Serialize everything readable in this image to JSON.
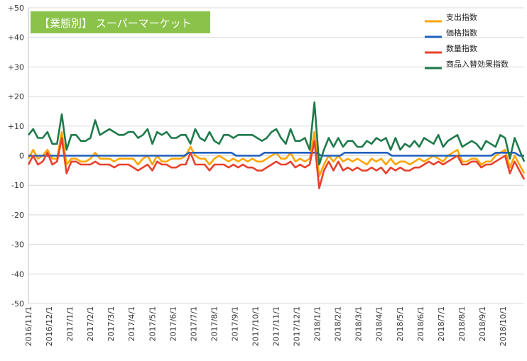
{
  "chart_data": {
    "type": "line",
    "title": "【業態別】 スーパーマーケット",
    "ylim": [
      -50,
      50
    ],
    "yticks": [
      50,
      40,
      30,
      20,
      10,
      0,
      -10,
      -20,
      -30,
      -40,
      -50
    ],
    "ytick_labels": [
      "+50",
      "+40",
      "+30",
      "+20",
      "+10",
      "0",
      "-10",
      "-20",
      "-30",
      "-40",
      "-50"
    ],
    "grid": true,
    "legend_position": "top-right",
    "x_start": "2016/11/1",
    "x_interval": "weekly",
    "x_labels": [
      "2016/11/1",
      "2016/12/1",
      "2017/1/1",
      "2017/2/1",
      "2017/3/1",
      "2017/4/1",
      "2017/5/1",
      "2017/6/1",
      "2017/7/1",
      "2017/8/1",
      "2017/9/1",
      "2017/10/1",
      "2017/11/1",
      "2017/12/1",
      "2018/1/1",
      "2018/2/1",
      "2018/3/1",
      "2018/4/1",
      "2018/5/1",
      "2018/6/1",
      "2018/7/1",
      "2018/8/1",
      "2018/9/1",
      "2018/10/1"
    ],
    "series": [
      {
        "name": "支出指数",
        "color": "#FFA500",
        "values": [
          -1,
          2,
          -1,
          0,
          2,
          -1,
          -1,
          8,
          -3,
          -1,
          -1,
          -2,
          -2,
          -1,
          1,
          -1,
          -1,
          -1,
          -2,
          -1,
          -1,
          -1,
          -1,
          -3,
          -1,
          0,
          -3,
          0,
          -2,
          -2,
          -1,
          -1,
          -1,
          0,
          3,
          0,
          -1,
          -1,
          -3,
          -1,
          0,
          -1,
          -2,
          -1,
          -2,
          -1,
          -2,
          -1,
          -2,
          -2,
          -1,
          0,
          1,
          -1,
          -1,
          1,
          -2,
          -1,
          -2,
          -1,
          8,
          -7,
          -3,
          0,
          -2,
          0,
          -2,
          -1,
          -2,
          -1,
          -2,
          -3,
          -1,
          -2,
          -1,
          -3,
          -1,
          -3,
          -2,
          -2,
          -3,
          -2,
          -1,
          -2,
          -1,
          0,
          -1,
          -2,
          0,
          1,
          2,
          -2,
          -2,
          -1,
          -1,
          -3,
          -2,
          -2,
          0,
          1,
          2,
          -4,
          0,
          -3,
          -6
        ]
      },
      {
        "name": "価格指数",
        "color": "#1F5FBF",
        "values": [
          0,
          0,
          0,
          0,
          0,
          0,
          0,
          0,
          0,
          0,
          0,
          0,
          0,
          0,
          0,
          0,
          0,
          0,
          0,
          0,
          0,
          0,
          0,
          0,
          0,
          0,
          0,
          0,
          0,
          0,
          0,
          0,
          0,
          0,
          1,
          1,
          1,
          1,
          1,
          1,
          1,
          1,
          1,
          1,
          0,
          0,
          0,
          0,
          0,
          0,
          1,
          1,
          1,
          1,
          1,
          1,
          1,
          1,
          1,
          1,
          1,
          1,
          0,
          0,
          0,
          0,
          0,
          1,
          1,
          1,
          1,
          1,
          1,
          1,
          1,
          1,
          1,
          0,
          0,
          0,
          0,
          0,
          0,
          0,
          0,
          0,
          0,
          0,
          0,
          0,
          0,
          0,
          0,
          0,
          0,
          0,
          0,
          0,
          0,
          1,
          1,
          1,
          1,
          1,
          0,
          0
        ]
      },
      {
        "name": "数量指数",
        "color": "#E8412C",
        "values": [
          -3,
          0,
          -3,
          -2,
          1,
          -3,
          -2,
          6,
          -6,
          -2,
          -2,
          -3,
          -3,
          -3,
          -2,
          -3,
          -3,
          -3,
          -4,
          -3,
          -3,
          -3,
          -4,
          -5,
          -4,
          -3,
          -5,
          -2,
          -3,
          -3,
          -4,
          -4,
          -3,
          -3,
          1,
          -3,
          -3,
          -3,
          -5,
          -3,
          -3,
          -3,
          -4,
          -3,
          -4,
          -3,
          -4,
          -4,
          -5,
          -5,
          -4,
          -3,
          -2,
          -3,
          -3,
          -2,
          -4,
          -3,
          -4,
          -3,
          5,
          -11,
          -5,
          -2,
          -5,
          -2,
          -5,
          -4,
          -5,
          -4,
          -5,
          -5,
          -4,
          -5,
          -4,
          -6,
          -4,
          -5,
          -4,
          -5,
          -5,
          -4,
          -4,
          -3,
          -2,
          -3,
          -2,
          -3,
          -2,
          -1,
          0,
          -3,
          -3,
          -2,
          -2,
          -4,
          -3,
          -3,
          -2,
          -1,
          0,
          -6,
          -2,
          -5,
          -8
        ]
      },
      {
        "name": "商品入替効果指数",
        "color": "#1E7A4A",
        "values": [
          7,
          9,
          6,
          6,
          8,
          4,
          4,
          14,
          2,
          7,
          7,
          5,
          5,
          6,
          12,
          7,
          8,
          9,
          8,
          7,
          7,
          8,
          8,
          6,
          7,
          9,
          4,
          8,
          7,
          8,
          6,
          6,
          7,
          7,
          4,
          9,
          6,
          5,
          8,
          5,
          4,
          7,
          7,
          6,
          7,
          7,
          7,
          7,
          6,
          5,
          6,
          8,
          9,
          6,
          4,
          9,
          5,
          5,
          6,
          2,
          18,
          -3,
          2,
          6,
          3,
          6,
          3,
          5,
          5,
          3,
          3,
          5,
          4,
          6,
          5,
          6,
          2,
          6,
          2,
          4,
          3,
          5,
          3,
          6,
          5,
          4,
          7,
          3,
          5,
          6,
          7,
          3,
          4,
          5,
          4,
          2,
          5,
          4,
          3,
          7,
          6,
          -1,
          6,
          2,
          -2
        ]
      }
    ]
  }
}
